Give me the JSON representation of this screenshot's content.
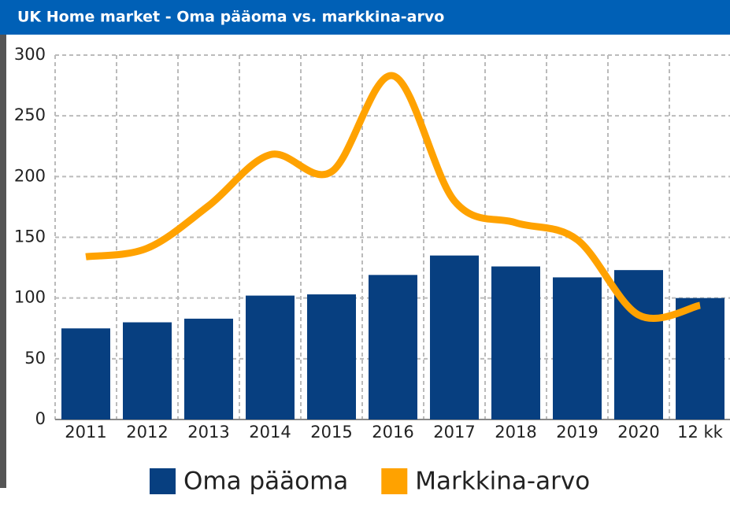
{
  "chart_data": {
    "type": "bar-line",
    "title": "UK Home market - Oma pääoma vs. markkina-arvo",
    "categories": [
      "2011",
      "2012",
      "2013",
      "2014",
      "2015",
      "2016",
      "2017",
      "2018",
      "2019",
      "2020",
      "12 kk"
    ],
    "series": [
      {
        "name": "Oma pääoma",
        "type": "bar",
        "color": "#073f80",
        "values": [
          75,
          80,
          83,
          102,
          103,
          119,
          135,
          126,
          117,
          123,
          100
        ]
      },
      {
        "name": "Markkina-arvo",
        "type": "line",
        "color": "#ffa200",
        "values": [
          134,
          141,
          176,
          218,
          204,
          283,
          180,
          162,
          148,
          86,
          94
        ]
      }
    ],
    "ylim": [
      0,
      300
    ],
    "yticks": [
      0,
      50,
      100,
      150,
      200,
      250,
      300
    ],
    "grid": true,
    "legend": "bottom"
  }
}
